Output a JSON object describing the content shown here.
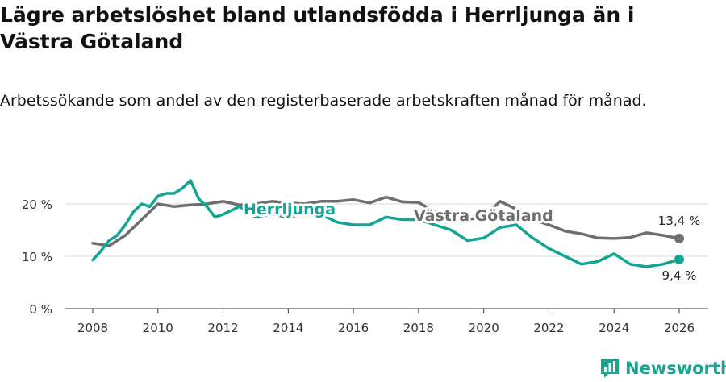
{
  "page": {
    "title": "Lägre arbetslöshet bland utlandsfödda i Herrljunga än i Västra Götaland",
    "subtitle": "Arbetssökande som andel av den registerbaserade arbetskraften månad för månad.",
    "brand": "Newsworthy"
  },
  "colors": {
    "herrljunga": "#13a594",
    "vastra_gotaland": "#6e6e70",
    "grid": "#d9d9d9",
    "axis": "#333333",
    "brand": "#17a591"
  },
  "chart_data": {
    "type": "line",
    "x_ticks": [
      2008,
      2010,
      2012,
      2014,
      2016,
      2018,
      2020,
      2022,
      2024,
      2026
    ],
    "x_tick_labels": [
      "2008",
      "2010",
      "2012",
      "2014",
      "2016",
      "2018",
      "2020",
      "2022",
      "2024",
      "2026"
    ],
    "y_ticks": [
      0,
      10,
      20
    ],
    "y_tick_labels": [
      "0 %",
      "10 %",
      "20 %"
    ],
    "xlim": [
      2007.1,
      2026.5
    ],
    "ylim": [
      0,
      22
    ],
    "grid": true,
    "series": [
      {
        "name": "Västra Götaland",
        "key": "vastra_gotaland",
        "end_label": "13,4 %",
        "x": [
          2008.0,
          2008.5,
          2009.0,
          2009.5,
          2010.0,
          2010.5,
          2011.0,
          2011.5,
          2012.0,
          2012.5,
          2013.0,
          2013.5,
          2014.0,
          2014.5,
          2015.0,
          2015.5,
          2016.0,
          2016.5,
          2017.0,
          2017.5,
          2018.0,
          2018.5,
          2019.0,
          2019.5,
          2020.0,
          2020.5,
          2021.0,
          2021.5,
          2022.0,
          2022.5,
          2023.0,
          2023.5,
          2024.0,
          2024.5,
          2025.0,
          2025.5,
          2026.0
        ],
        "y": [
          12.5,
          12.0,
          14.0,
          17.0,
          20.0,
          19.5,
          19.8,
          20.0,
          20.5,
          19.8,
          20.0,
          20.5,
          20.2,
          20.0,
          20.5,
          20.5,
          20.8,
          20.2,
          21.3,
          20.4,
          20.3,
          18.5,
          17.8,
          17.0,
          17.5,
          20.5,
          19.0,
          17.0,
          16.0,
          14.8,
          14.3,
          13.5,
          13.4,
          13.6,
          14.5,
          14.0,
          13.4
        ]
      },
      {
        "name": "Herrljunga",
        "key": "herrljunga",
        "end_label": "9,4 %",
        "x": [
          2008.0,
          2008.25,
          2008.5,
          2008.75,
          2009.0,
          2009.25,
          2009.5,
          2009.75,
          2010.0,
          2010.25,
          2010.5,
          2010.75,
          2011.0,
          2011.25,
          2011.5,
          2011.75,
          2012.0,
          2012.5,
          2013.0,
          2013.5,
          2014.0,
          2014.5,
          2015.0,
          2015.5,
          2016.0,
          2016.5,
          2017.0,
          2017.5,
          2018.0,
          2018.5,
          2019.0,
          2019.5,
          2020.0,
          2020.5,
          2021.0,
          2021.5,
          2022.0,
          2022.5,
          2023.0,
          2023.5,
          2024.0,
          2024.5,
          2025.0,
          2025.5,
          2026.0
        ],
        "y": [
          9.3,
          11.0,
          13.0,
          14.0,
          16.0,
          18.5,
          20.0,
          19.5,
          21.5,
          22.0,
          22.0,
          23.0,
          24.5,
          21.0,
          19.5,
          17.5,
          18.0,
          19.5,
          17.5,
          18.0,
          17.5,
          18.0,
          18.0,
          16.5,
          16.0,
          16.0,
          17.5,
          17.0,
          17.0,
          16.0,
          15.0,
          13.0,
          13.5,
          15.5,
          16.0,
          13.5,
          11.5,
          10.0,
          8.5,
          9.0,
          10.5,
          8.5,
          8.0,
          8.5,
          9.4
        ]
      }
    ]
  }
}
